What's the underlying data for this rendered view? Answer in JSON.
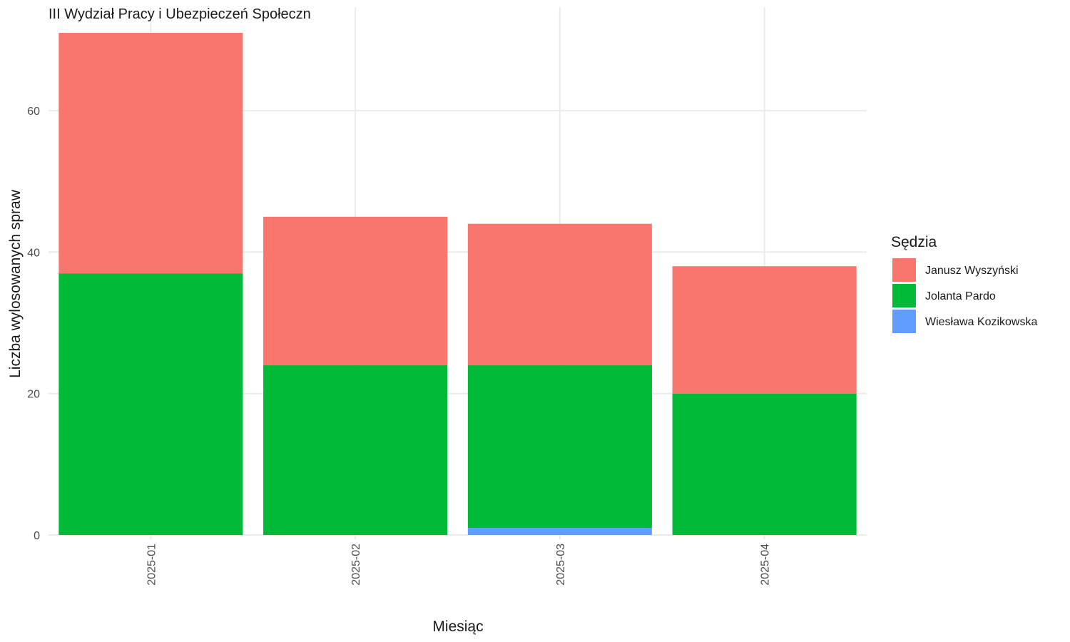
{
  "chart_data": {
    "type": "bar",
    "stacked": true,
    "title": "III Wydział Pracy i Ubezpieczeń Społeczn",
    "xlabel": "Miesiąc",
    "ylabel": "Liczba wylosowanych spraw",
    "categories": [
      "2025-01",
      "2025-02",
      "2025-03",
      "2025-04"
    ],
    "series": [
      {
        "name": "Janusz Wyszyński",
        "color": "#F8766D",
        "values": [
          34,
          21,
          20,
          18
        ]
      },
      {
        "name": "Jolanta Pardo",
        "color": "#00BA38",
        "values": [
          37,
          24,
          23,
          20
        ]
      },
      {
        "name": "Wiesława Kozikowska",
        "color": "#619CFF",
        "values": [
          0,
          0,
          1,
          0
        ]
      }
    ],
    "stack_order_bottom_to_top": [
      "Wiesława Kozikowska",
      "Jolanta Pardo",
      "Janusz Wyszyński"
    ],
    "ylim": [
      0,
      71
    ],
    "yticks": [
      0,
      20,
      40,
      60
    ],
    "grid": true,
    "legend": {
      "title": "Sędzia",
      "position": "right"
    }
  }
}
